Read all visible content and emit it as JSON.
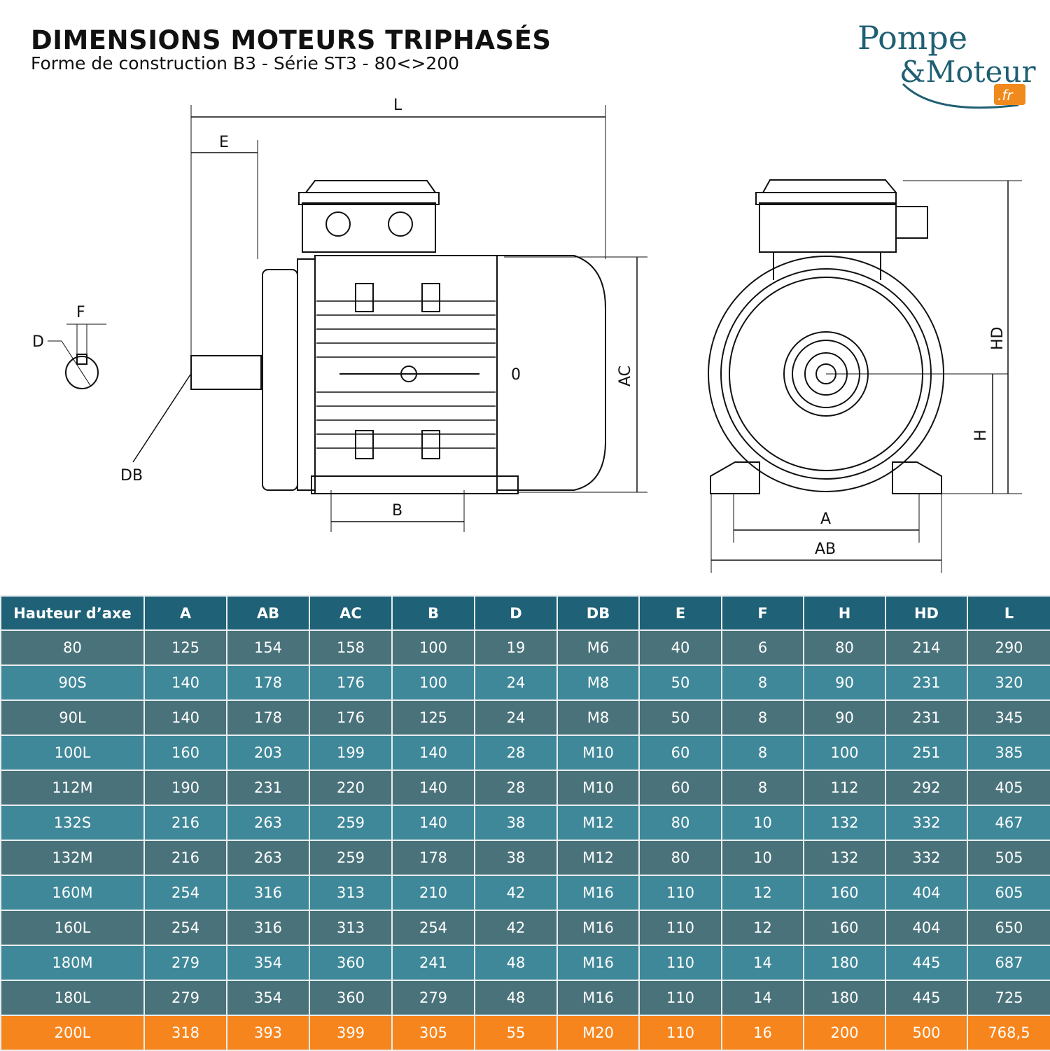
{
  "header": {
    "title": "DIMENSIONS MOTEURS TRIPHASÉS",
    "subtitle": "Forme de construction B3 - Série ST3 - 80<>200"
  },
  "logo": {
    "line1": "Pompe",
    "line2": "&Moteur",
    "tld": ".fr",
    "colors": {
      "text": "#1f5f73",
      "badge": "#f08a1c"
    }
  },
  "drawing_labels": {
    "L": "L",
    "E": "E",
    "F": "F",
    "D": "D",
    "DB": "DB",
    "B": "B",
    "AC": "AC",
    "zero": "0",
    "HD": "HD",
    "H": "H",
    "A": "A",
    "AB": "AB"
  },
  "colors": {
    "header": "#1f6176",
    "row_dark": "#4a727a",
    "row_light": "#3f8899",
    "highlight": "#f7851d"
  },
  "table": {
    "columns": [
      "Hauteur d’axe",
      "A",
      "AB",
      "AC",
      "B",
      "D",
      "DB",
      "E",
      "F",
      "H",
      "HD",
      "L"
    ],
    "rows": [
      [
        "80",
        "125",
        "154",
        "158",
        "100",
        "19",
        "M6",
        "40",
        "6",
        "80",
        "214",
        "290"
      ],
      [
        "90S",
        "140",
        "178",
        "176",
        "100",
        "24",
        "M8",
        "50",
        "8",
        "90",
        "231",
        "320"
      ],
      [
        "90L",
        "140",
        "178",
        "176",
        "125",
        "24",
        "M8",
        "50",
        "8",
        "90",
        "231",
        "345"
      ],
      [
        "100L",
        "160",
        "203",
        "199",
        "140",
        "28",
        "M10",
        "60",
        "8",
        "100",
        "251",
        "385"
      ],
      [
        "112M",
        "190",
        "231",
        "220",
        "140",
        "28",
        "M10",
        "60",
        "8",
        "112",
        "292",
        "405"
      ],
      [
        "132S",
        "216",
        "263",
        "259",
        "140",
        "38",
        "M12",
        "80",
        "10",
        "132",
        "332",
        "467"
      ],
      [
        "132M",
        "216",
        "263",
        "259",
        "178",
        "38",
        "M12",
        "80",
        "10",
        "132",
        "332",
        "505"
      ],
      [
        "160M",
        "254",
        "316",
        "313",
        "210",
        "42",
        "M16",
        "110",
        "12",
        "160",
        "404",
        "605"
      ],
      [
        "160L",
        "254",
        "316",
        "313",
        "254",
        "42",
        "M16",
        "110",
        "12",
        "160",
        "404",
        "650"
      ],
      [
        "180M",
        "279",
        "354",
        "360",
        "241",
        "48",
        "M16",
        "110",
        "14",
        "180",
        "445",
        "687"
      ],
      [
        "180L",
        "279",
        "354",
        "360",
        "279",
        "48",
        "M16",
        "110",
        "14",
        "180",
        "445",
        "725"
      ],
      [
        "200L",
        "318",
        "393",
        "399",
        "305",
        "55",
        "M20",
        "110",
        "16",
        "200",
        "500",
        "768,5"
      ]
    ],
    "highlighted_row": "200L"
  }
}
